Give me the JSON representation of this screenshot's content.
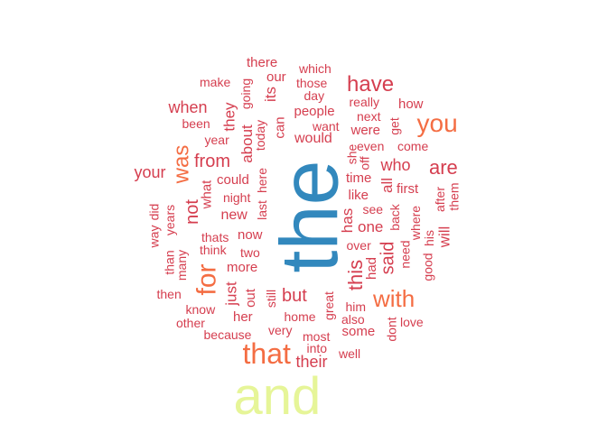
{
  "palette": {
    "small": "#d53e4f",
    "medium": "#f46d43",
    "large": "#3288bd",
    "xlarge": "#e6f598"
  },
  "words": [
    {
      "text": "the",
      "weight": 100,
      "rotated": true,
      "tone": "large"
    },
    {
      "text": "and",
      "weight": 62,
      "rotated": false,
      "tone": "xlarge"
    },
    {
      "text": "that",
      "weight": 36,
      "rotated": false,
      "tone": "medium"
    },
    {
      "text": "for",
      "weight": 32,
      "rotated": true,
      "tone": "medium"
    },
    {
      "text": "with",
      "weight": 28,
      "rotated": false,
      "tone": "medium"
    },
    {
      "text": "you",
      "weight": 28,
      "rotated": false,
      "tone": "medium"
    },
    {
      "text": "was",
      "weight": 27,
      "rotated": true,
      "tone": "medium"
    },
    {
      "text": "have",
      "weight": 24,
      "rotated": false,
      "tone": "small"
    },
    {
      "text": "are",
      "weight": 24,
      "rotated": false,
      "tone": "small"
    },
    {
      "text": "this",
      "weight": 24,
      "rotated": true,
      "tone": "small"
    },
    {
      "text": "said",
      "weight": 22,
      "rotated": true,
      "tone": "small"
    },
    {
      "text": "from",
      "weight": 21,
      "rotated": false,
      "tone": "small"
    },
    {
      "text": "your",
      "weight": 20,
      "rotated": false,
      "tone": "small"
    },
    {
      "text": "but",
      "weight": 20,
      "rotated": false,
      "tone": "small"
    },
    {
      "text": "not",
      "weight": 20,
      "rotated": true,
      "tone": "small"
    },
    {
      "text": "their",
      "weight": 18,
      "rotated": false,
      "tone": "small"
    },
    {
      "text": "when",
      "weight": 18,
      "rotated": false,
      "tone": "small"
    },
    {
      "text": "who",
      "weight": 18,
      "rotated": false,
      "tone": "small"
    },
    {
      "text": "has",
      "weight": 18,
      "rotated": true,
      "tone": "small"
    },
    {
      "text": "they",
      "weight": 18,
      "rotated": true,
      "tone": "small"
    },
    {
      "text": "its",
      "weight": 18,
      "rotated": true,
      "tone": "small"
    },
    {
      "text": "about",
      "weight": 18,
      "rotated": true,
      "tone": "small"
    },
    {
      "text": "will",
      "weight": 18,
      "rotated": true,
      "tone": "small"
    },
    {
      "text": "all",
      "weight": 18,
      "rotated": true,
      "tone": "small"
    },
    {
      "text": "just",
      "weight": 18,
      "rotated": true,
      "tone": "small"
    },
    {
      "text": "one",
      "weight": 18,
      "rotated": false,
      "tone": "small"
    },
    {
      "text": "would",
      "weight": 17,
      "rotated": false,
      "tone": "small"
    },
    {
      "text": "new",
      "weight": 17,
      "rotated": false,
      "tone": "small"
    },
    {
      "text": "more",
      "weight": 16,
      "rotated": false,
      "tone": "small"
    },
    {
      "text": "some",
      "weight": 16,
      "rotated": false,
      "tone": "small"
    },
    {
      "text": "her",
      "weight": 16,
      "rotated": false,
      "tone": "small"
    },
    {
      "text": "out",
      "weight": 16,
      "rotated": true,
      "tone": "small"
    },
    {
      "text": "like",
      "weight": 16,
      "rotated": false,
      "tone": "small"
    },
    {
      "text": "were",
      "weight": 16,
      "rotated": false,
      "tone": "small"
    },
    {
      "text": "can",
      "weight": 16,
      "rotated": true,
      "tone": "small"
    },
    {
      "text": "people",
      "weight": 16,
      "rotated": false,
      "tone": "small"
    },
    {
      "text": "could",
      "weight": 16,
      "rotated": false,
      "tone": "small"
    },
    {
      "text": "time",
      "weight": 16,
      "rotated": false,
      "tone": "small"
    },
    {
      "text": "there",
      "weight": 15,
      "rotated": false,
      "tone": "small"
    },
    {
      "text": "our",
      "weight": 15,
      "rotated": false,
      "tone": "small"
    },
    {
      "text": "first",
      "weight": 15,
      "rotated": false,
      "tone": "small"
    },
    {
      "text": "how",
      "weight": 15,
      "rotated": false,
      "tone": "small"
    },
    {
      "text": "what",
      "weight": 15,
      "rotated": true,
      "tone": "small"
    },
    {
      "text": "now",
      "weight": 15,
      "rotated": false,
      "tone": "small"
    },
    {
      "text": "had",
      "weight": 15,
      "rotated": true,
      "tone": "small"
    },
    {
      "text": "get",
      "weight": 15,
      "rotated": true,
      "tone": "small"
    },
    {
      "text": "his",
      "weight": 15,
      "rotated": true,
      "tone": "small"
    },
    {
      "text": "back",
      "weight": 15,
      "rotated": true,
      "tone": "small"
    },
    {
      "text": "she",
      "weight": 15,
      "rotated": true,
      "tone": "small"
    },
    {
      "text": "two",
      "weight": 15,
      "rotated": false,
      "tone": "small"
    },
    {
      "text": "dont",
      "weight": 15,
      "rotated": true,
      "tone": "small"
    },
    {
      "text": "after",
      "weight": 15,
      "rotated": true,
      "tone": "small"
    },
    {
      "text": "which",
      "weight": 14,
      "rotated": false,
      "tone": "small"
    },
    {
      "text": "make",
      "weight": 14,
      "rotated": false,
      "tone": "small"
    },
    {
      "text": "those",
      "weight": 14,
      "rotated": false,
      "tone": "small"
    },
    {
      "text": "day",
      "weight": 14,
      "rotated": false,
      "tone": "small"
    },
    {
      "text": "really",
      "weight": 14,
      "rotated": false,
      "tone": "small"
    },
    {
      "text": "next",
      "weight": 14,
      "rotated": false,
      "tone": "small"
    },
    {
      "text": "been",
      "weight": 14,
      "rotated": false,
      "tone": "small"
    },
    {
      "text": "want",
      "weight": 14,
      "rotated": false,
      "tone": "small"
    },
    {
      "text": "year",
      "weight": 14,
      "rotated": false,
      "tone": "small"
    },
    {
      "text": "even",
      "weight": 14,
      "rotated": false,
      "tone": "small"
    },
    {
      "text": "come",
      "weight": 14,
      "rotated": false,
      "tone": "small"
    },
    {
      "text": "see",
      "weight": 14,
      "rotated": false,
      "tone": "small"
    },
    {
      "text": "night",
      "weight": 14,
      "rotated": false,
      "tone": "small"
    },
    {
      "text": "over",
      "weight": 14,
      "rotated": false,
      "tone": "small"
    },
    {
      "text": "thats",
      "weight": 14,
      "rotated": false,
      "tone": "small"
    },
    {
      "text": "think",
      "weight": 14,
      "rotated": false,
      "tone": "small"
    },
    {
      "text": "then",
      "weight": 14,
      "rotated": false,
      "tone": "small"
    },
    {
      "text": "know",
      "weight": 14,
      "rotated": false,
      "tone": "small"
    },
    {
      "text": "him",
      "weight": 14,
      "rotated": false,
      "tone": "small"
    },
    {
      "text": "home",
      "weight": 14,
      "rotated": false,
      "tone": "small"
    },
    {
      "text": "also",
      "weight": 14,
      "rotated": false,
      "tone": "small"
    },
    {
      "text": "love",
      "weight": 14,
      "rotated": false,
      "tone": "small"
    },
    {
      "text": "other",
      "weight": 14,
      "rotated": false,
      "tone": "small"
    },
    {
      "text": "very",
      "weight": 14,
      "rotated": false,
      "tone": "small"
    },
    {
      "text": "because",
      "weight": 14,
      "rotated": false,
      "tone": "small"
    },
    {
      "text": "most",
      "weight": 14,
      "rotated": false,
      "tone": "small"
    },
    {
      "text": "into",
      "weight": 14,
      "rotated": false,
      "tone": "small"
    },
    {
      "text": "well",
      "weight": 14,
      "rotated": false,
      "tone": "small"
    },
    {
      "text": "going",
      "weight": 14,
      "rotated": true,
      "tone": "small"
    },
    {
      "text": "today",
      "weight": 14,
      "rotated": true,
      "tone": "small"
    },
    {
      "text": "off",
      "weight": 14,
      "rotated": true,
      "tone": "small"
    },
    {
      "text": "here",
      "weight": 14,
      "rotated": true,
      "tone": "small"
    },
    {
      "text": "last",
      "weight": 14,
      "rotated": true,
      "tone": "small"
    },
    {
      "text": "where",
      "weight": 14,
      "rotated": true,
      "tone": "small"
    },
    {
      "text": "them",
      "weight": 14,
      "rotated": true,
      "tone": "small"
    },
    {
      "text": "need",
      "weight": 14,
      "rotated": true,
      "tone": "small"
    },
    {
      "text": "good",
      "weight": 14,
      "rotated": true,
      "tone": "small"
    },
    {
      "text": "way",
      "weight": 14,
      "rotated": true,
      "tone": "small"
    },
    {
      "text": "did",
      "weight": 14,
      "rotated": true,
      "tone": "small"
    },
    {
      "text": "years",
      "weight": 14,
      "rotated": true,
      "tone": "small"
    },
    {
      "text": "than",
      "weight": 14,
      "rotated": true,
      "tone": "small"
    },
    {
      "text": "many",
      "weight": 14,
      "rotated": true,
      "tone": "small"
    },
    {
      "text": "still",
      "weight": 14,
      "rotated": true,
      "tone": "small"
    },
    {
      "text": "great",
      "weight": 14,
      "rotated": true,
      "tone": "small"
    }
  ]
}
